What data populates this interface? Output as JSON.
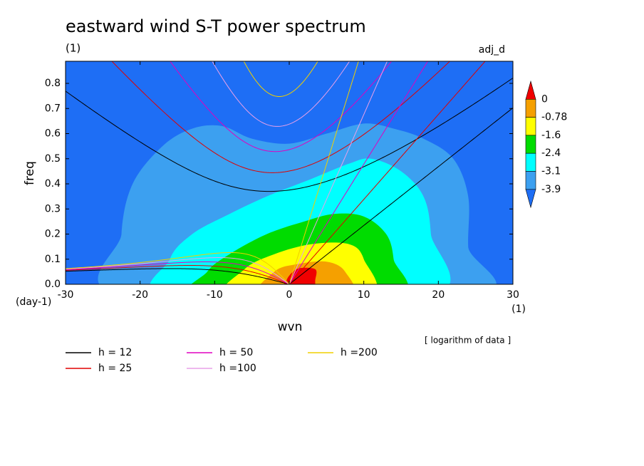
{
  "chart_data": {
    "type": "spectrum",
    "title": "eastward wind S-T power spectrum",
    "subtitle": "(1)",
    "corner_label": "adj_d",
    "x_label": "wvn",
    "y_label": "freq",
    "x_unit": "(1)",
    "y_unit": "(day-1)",
    "note": "[ logarithm of data ]",
    "xlim": [
      -30,
      30
    ],
    "ylim": [
      0,
      0.888
    ],
    "xticks": [
      -30,
      -20,
      -10,
      0,
      10,
      20,
      30
    ],
    "yticks": [
      {
        "value": 0,
        "label": "0.0"
      },
      {
        "value": 0.1,
        "label": "0.1"
      },
      {
        "value": 0.2,
        "label": "0.2"
      },
      {
        "value": 0.3,
        "label": "0.3"
      },
      {
        "value": 0.4,
        "label": "0.4"
      },
      {
        "value": 0.5,
        "label": "0.5"
      },
      {
        "value": 0.6,
        "label": "0.6"
      },
      {
        "value": 0.7,
        "label": "0.7"
      },
      {
        "value": 0.8,
        "label": "0.8"
      }
    ],
    "colorbar": {
      "levels": [
        0,
        -0.78,
        -1.6,
        -2.4,
        -3.1,
        -3.9
      ],
      "colors": [
        "#f00000",
        "#f5a000",
        "#ffff00",
        "#00dc00",
        "#00ffff",
        "#3ca0f0",
        "#1e6ef5"
      ]
    },
    "contours": [
      {
        "level": -3.9,
        "points": [
          [
            -22,
            -0.05
          ],
          [
            -22.5,
            0.2
          ],
          [
            -21,
            0.4
          ],
          [
            -17,
            0.55
          ],
          [
            -13,
            0.62
          ],
          [
            -9,
            0.63
          ],
          [
            -5,
            0.58
          ],
          [
            0,
            0.56
          ],
          [
            5,
            0.6
          ],
          [
            10,
            0.64
          ],
          [
            14,
            0.62
          ],
          [
            18,
            0.58
          ],
          [
            22,
            0.5
          ],
          [
            24,
            0.35
          ],
          [
            24,
            0.15
          ],
          [
            24.5,
            -0.05
          ]
        ]
      },
      {
        "level": -3.1,
        "points": [
          [
            -16,
            -0.05
          ],
          [
            -16,
            0.1
          ],
          [
            -13,
            0.2
          ],
          [
            -8,
            0.28
          ],
          [
            -3,
            0.35
          ],
          [
            3,
            0.42
          ],
          [
            8,
            0.48
          ],
          [
            11,
            0.5
          ],
          [
            15,
            0.45
          ],
          [
            18,
            0.35
          ],
          [
            19,
            0.2
          ],
          [
            19,
            -0.05
          ]
        ]
      },
      {
        "level": -2.4,
        "points": [
          [
            -12,
            -0.05
          ],
          [
            -11,
            0.05
          ],
          [
            -8,
            0.12
          ],
          [
            -3,
            0.2
          ],
          [
            2,
            0.25
          ],
          [
            6,
            0.28
          ],
          [
            10,
            0.27
          ],
          [
            13,
            0.2
          ],
          [
            14,
            0.1
          ],
          [
            14,
            -0.05
          ]
        ]
      },
      {
        "level": -1.6,
        "points": [
          [
            -8,
            -0.05
          ],
          [
            -6,
            0.06
          ],
          [
            -2,
            0.12
          ],
          [
            3,
            0.16
          ],
          [
            8,
            0.16
          ],
          [
            10,
            0.1
          ],
          [
            10.5,
            -0.05
          ]
        ]
      },
      {
        "level": -0.78,
        "points": [
          [
            -4,
            -0.05
          ],
          [
            -2,
            0.05
          ],
          [
            1,
            0.08
          ],
          [
            5,
            0.09
          ],
          [
            7.5,
            0.05
          ],
          [
            8,
            -0.05
          ]
        ]
      },
      {
        "level": 0,
        "points": [
          [
            -0.6,
            -0.02
          ],
          [
            -0.3,
            0.02
          ],
          [
            0.5,
            0.05
          ],
          [
            1.5,
            0.065
          ],
          [
            3.5,
            0.06
          ],
          [
            3.5,
            0.02
          ],
          [
            3,
            -0.02
          ]
        ]
      }
    ],
    "series": [
      {
        "name": "h = 12",
        "h": 12,
        "color": "#000000"
      },
      {
        "name": "h = 25",
        "h": 25,
        "color": "#e00000"
      },
      {
        "name": "h = 50",
        "h": 50,
        "color": "#e000c0"
      },
      {
        "name": "h =100",
        "h": 100,
        "color": "#e8a0e8"
      },
      {
        "name": "h =200",
        "h": 200,
        "color": "#f0d000"
      }
    ]
  }
}
